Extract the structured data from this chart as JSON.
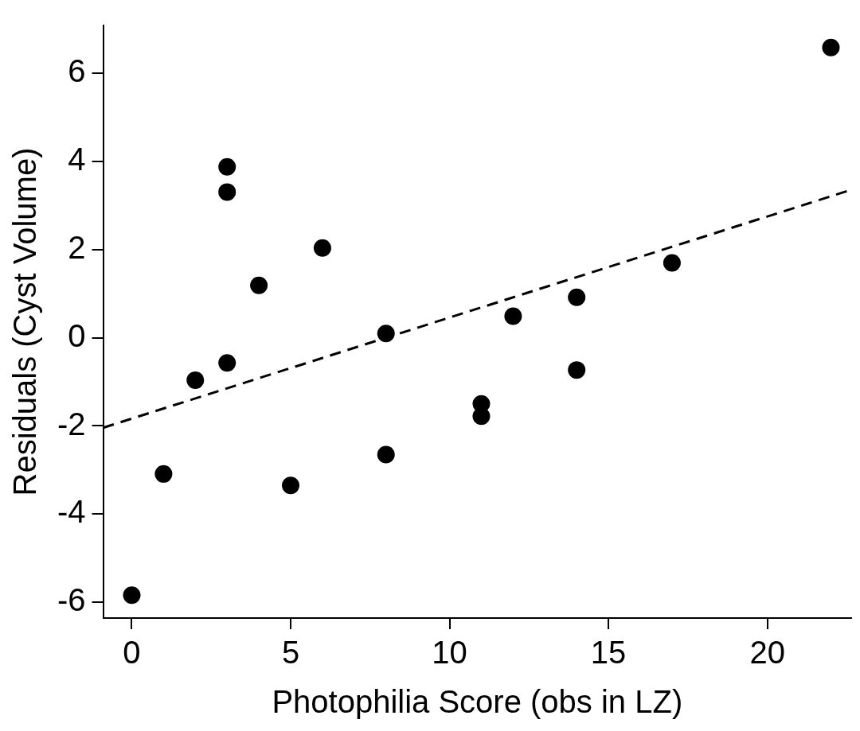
{
  "chart_data": {
    "type": "scatter",
    "xlabel": "Photophilia Score (obs in LZ)",
    "ylabel": "Residuals (Cyst Volume)",
    "xlim": [
      -0.9,
      22.64
    ],
    "ylim": [
      -6.36,
      7.09
    ],
    "xticks": [
      0,
      5,
      10,
      15,
      20
    ],
    "yticks": [
      -6,
      -4,
      -2,
      0,
      2,
      4,
      6
    ],
    "grid": false,
    "legend": false,
    "marker": "circle",
    "series": [
      {
        "type": "scatter",
        "color": "#000000",
        "x": [
          0,
          1,
          2,
          3,
          3,
          3,
          4,
          5,
          6,
          8,
          8,
          11,
          11,
          12,
          14,
          14,
          17,
          22
        ],
        "values": [
          -5.84,
          -3.09,
          -0.96,
          3.88,
          3.31,
          -0.57,
          1.19,
          -3.35,
          2.04,
          0.1,
          -2.65,
          -1.5,
          -1.78,
          0.49,
          0.92,
          -0.73,
          1.7,
          6.59
        ]
      },
      {
        "type": "line",
        "color": "#000000",
        "line_style": "dashed",
        "marker": "none",
        "x": [
          -0.9,
          22.64
        ],
        "values": [
          -2.04,
          3.36
        ]
      }
    ]
  }
}
